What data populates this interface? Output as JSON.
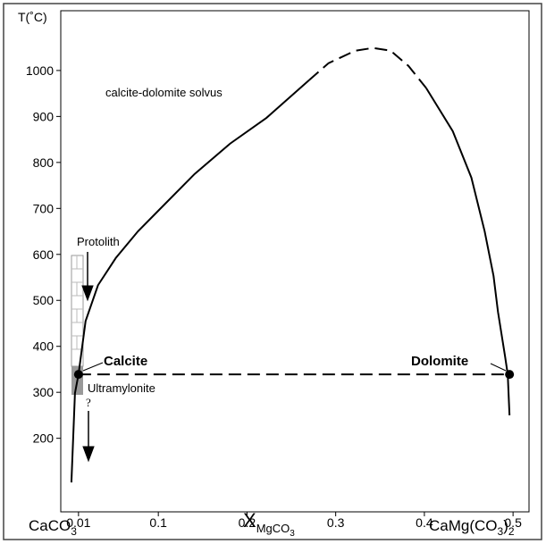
{
  "chart_data": {
    "type": "line",
    "y_label": "T(˚C)",
    "x_label": [
      "X",
      "MgCO",
      "3"
    ],
    "left_end_label": [
      "CaCO",
      "3"
    ],
    "right_end_label": [
      "CaMg(CO",
      "3",
      ")",
      "2"
    ],
    "annotations": [
      "calcite-dolomite solvus",
      "Protolith",
      "Calcite",
      "Dolomite",
      "Ultramylonite",
      "?"
    ],
    "xlim": [
      -0.01,
      0.518
    ],
    "ylim": [
      40,
      1130
    ],
    "xticks": [
      0.01,
      0.1,
      0.2,
      0.3,
      0.4,
      0.5
    ],
    "yticks": [
      200,
      300,
      400,
      500,
      600,
      700,
      800,
      900,
      1000
    ],
    "series": [
      {
        "color": "#000000",
        "dashed": false,
        "x": [
          0.002,
          0.006,
          0.01,
          0.018,
          0.032,
          0.052,
          0.077,
          0.1,
          0.141,
          0.181,
          0.222,
          0.27
        ],
        "values": [
          104,
          298,
          339,
          455,
          533,
          592,
          650,
          695,
          775,
          841,
          897,
          979
        ]
      },
      {
        "color": "#000000",
        "dashed": true,
        "x": [
          0.27,
          0.292,
          0.322,
          0.342,
          0.362,
          0.382,
          0.402
        ],
        "values": [
          979,
          1016,
          1043,
          1049,
          1043,
          1010,
          962
        ]
      },
      {
        "color": "#000000",
        "dashed": false,
        "x": [
          0.402,
          0.432,
          0.453,
          0.468,
          0.478,
          0.483,
          0.491,
          0.494,
          0.496
        ],
        "values": [
          962,
          868,
          767,
          650,
          553,
          475,
          378,
          339,
          250
        ]
      },
      {
        "color": "#000000",
        "dashed": true,
        "markers": true,
        "x": [
          0.01,
          0.496
        ],
        "values": [
          339,
          339
        ]
      }
    ]
  }
}
